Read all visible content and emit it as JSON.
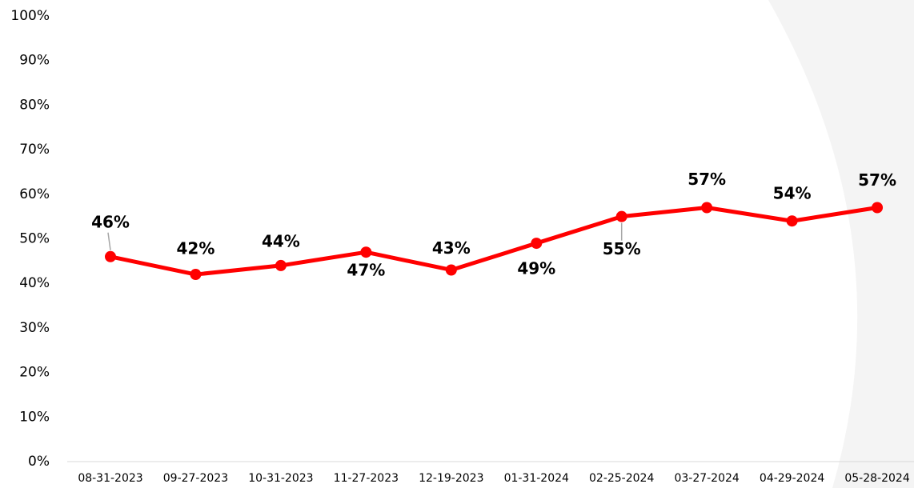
{
  "chart_data": {
    "type": "line",
    "categories": [
      "08-31-2023",
      "09-27-2023",
      "10-31-2023",
      "11-27-2023",
      "12-19-2023",
      "01-31-2024",
      "02-25-2024",
      "03-27-2024",
      "04-29-2024",
      "05-28-2024"
    ],
    "series": [
      {
        "name": "",
        "color": "#ff0000",
        "values": [
          46,
          42,
          44,
          47,
          43,
          49,
          55,
          57,
          54,
          57
        ],
        "value_labels": [
          "46%",
          "42%",
          "44%",
          "47%",
          "43%",
          "49%",
          "55%",
          "57%",
          "54%",
          "57%"
        ]
      }
    ],
    "ylim": [
      0,
      100
    ],
    "yticks": [
      {
        "value": 0,
        "label": "0%"
      },
      {
        "value": 10,
        "label": "10%"
      },
      {
        "value": 20,
        "label": "20%"
      },
      {
        "value": 30,
        "label": "30%"
      },
      {
        "value": 40,
        "label": "40%"
      },
      {
        "value": 50,
        "label": "50%"
      },
      {
        "value": 60,
        "label": "60%"
      },
      {
        "value": 70,
        "label": "70%"
      },
      {
        "value": 80,
        "label": "80%"
      },
      {
        "value": 90,
        "label": "90%"
      },
      {
        "value": 100,
        "label": "100%"
      }
    ],
    "grid": false
  }
}
